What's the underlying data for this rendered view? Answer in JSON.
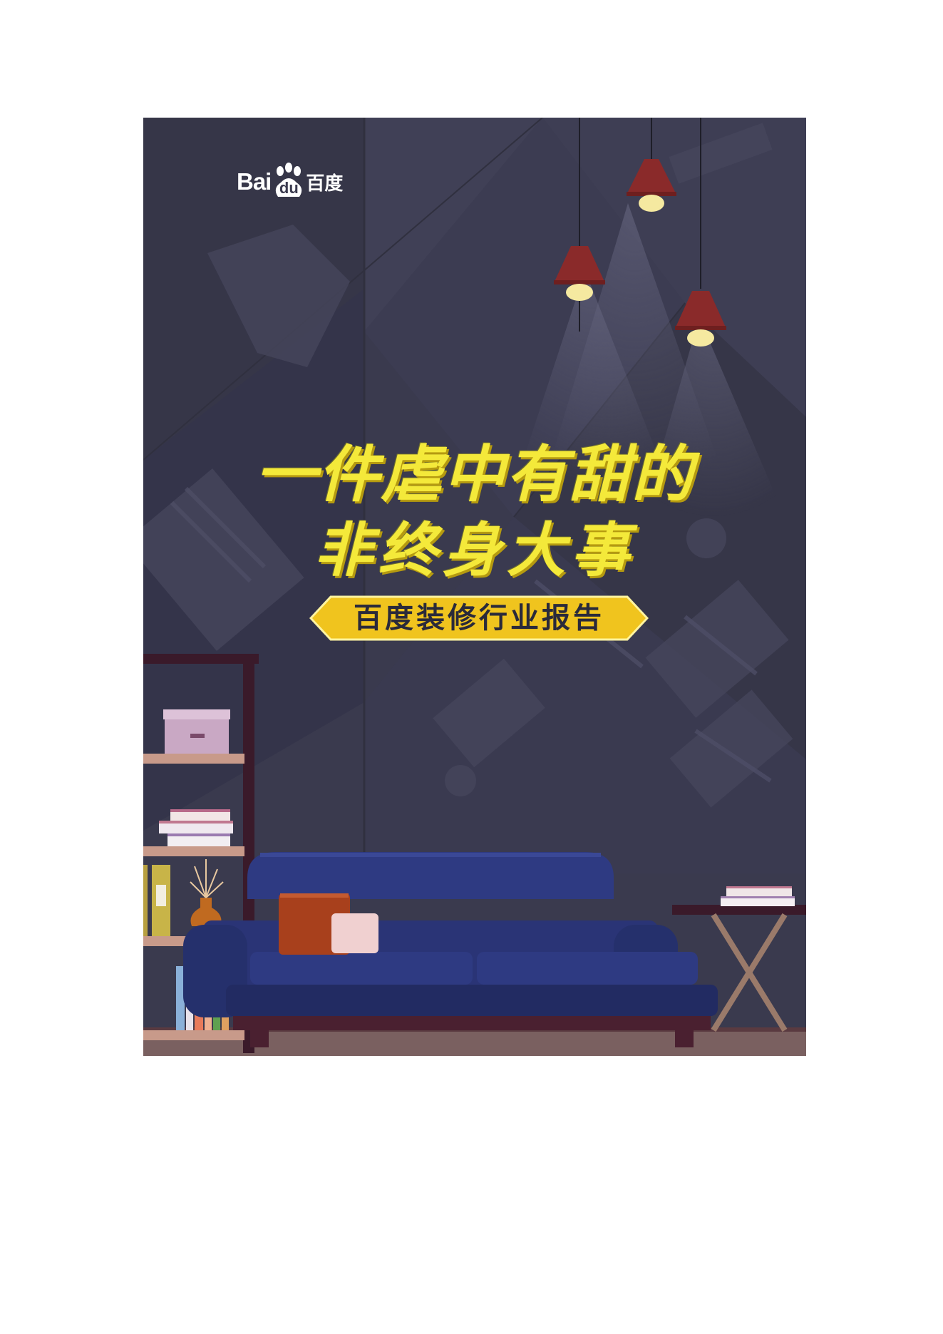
{
  "brand": {
    "logo_prefix": "Bai",
    "logo_paw_text": "du",
    "logo_chinese": "百度"
  },
  "title": {
    "line1": "一件虐中有甜的",
    "line2": "非终身大事"
  },
  "subtitle": "百度装修行业报告",
  "colors": {
    "background": "#3a3a4e",
    "title_yellow": "#f4e93a",
    "subtitle_banner": "#f0c41e",
    "sofa": "#2a3476",
    "lamp_shade": "#8a2a2a"
  },
  "icons": [
    "baidu-paw-icon",
    "pendant-lamp-icon",
    "sofa-icon",
    "bookshelf-icon",
    "side-table-icon",
    "vase-icon",
    "storage-box-icon"
  ]
}
